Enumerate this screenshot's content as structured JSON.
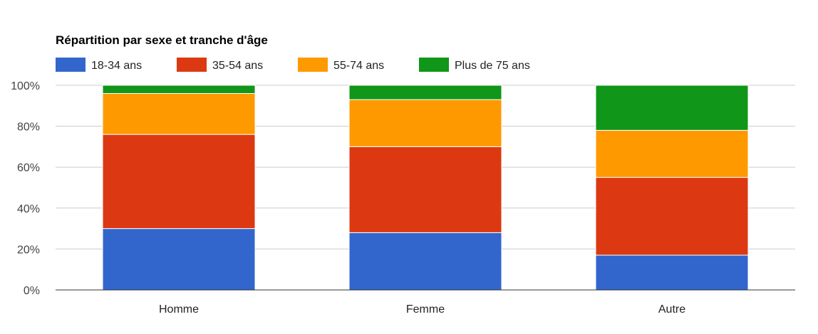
{
  "chart_data": {
    "type": "bar",
    "stacked": true,
    "percent_stacked": true,
    "title": "Répartition par sexe et tranche d'âge",
    "categories": [
      "Homme",
      "Femme",
      "Autre"
    ],
    "series": [
      {
        "name": "18-34 ans",
        "color": "#3366cc",
        "values": [
          30,
          28,
          17
        ]
      },
      {
        "name": "35-54 ans",
        "color": "#dc3912",
        "values": [
          46,
          42,
          38
        ]
      },
      {
        "name": "55-74 ans",
        "color": "#ff9900",
        "values": [
          20,
          23,
          23
        ]
      },
      {
        "name": "Plus de 75 ans",
        "color": "#109618",
        "values": [
          4,
          7,
          22
        ]
      }
    ],
    "ylim": [
      0,
      100
    ],
    "yticks": [
      "0%",
      "20%",
      "40%",
      "60%",
      "80%",
      "100%"
    ],
    "grid": true,
    "legend_position": "top-left"
  }
}
